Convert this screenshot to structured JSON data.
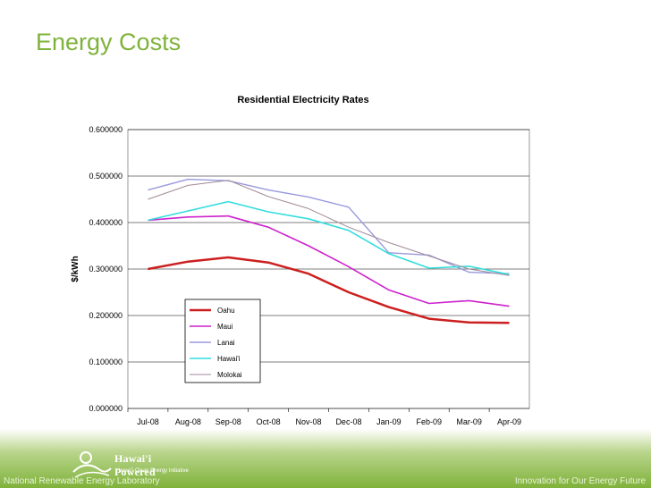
{
  "slide": {
    "title": "Energy Costs",
    "footer_left": "National Renewable Energy Laboratory",
    "footer_right": "Innovation for Our Energy Future",
    "logo_text": "Hawai'i Powered",
    "logo_subtext": "Hawai'i Clean Energy Initiative"
  },
  "colors": {
    "title": "#7fb23a",
    "plot_bg": "#ffffff",
    "grid": "#000000"
  },
  "chart_data": {
    "type": "line",
    "title": "Residential Electricity Rates",
    "ylabel": "$/kWh",
    "xlabel": "",
    "ylim": [
      0,
      0.6
    ],
    "y_ticks": [
      "0.000000",
      "0.100000",
      "0.200000",
      "0.300000",
      "0.400000",
      "0.500000",
      "0.600000"
    ],
    "categories": [
      "Jul-08",
      "Aug-08",
      "Sep-08",
      "Oct-08",
      "Nov-08",
      "Dec-08",
      "Jan-09",
      "Feb-09",
      "Mar-09",
      "Apr-09"
    ],
    "grid": true,
    "legend_position": "inside-bottom-left",
    "series": [
      {
        "name": "Oahu",
        "color": "#cc1f1f",
        "width": 2.5,
        "values": [
          0.3,
          0.316,
          0.325,
          0.314,
          0.29,
          0.25,
          0.218,
          0.193,
          0.185,
          0.184
        ]
      },
      {
        "name": "Maui",
        "color": "#cc22cc",
        "width": 1.6,
        "values": [
          0.405,
          0.412,
          0.414,
          0.39,
          0.35,
          0.305,
          0.255,
          0.226,
          0.232,
          0.22
        ]
      },
      {
        "name": "Lanai",
        "color": "#9999dd",
        "width": 1.4,
        "values": [
          0.47,
          0.493,
          0.49,
          0.47,
          0.455,
          0.433,
          0.335,
          0.33,
          0.293,
          0.29
        ]
      },
      {
        "name": "Hawai'i",
        "color": "#33dddd",
        "width": 1.6,
        "values": [
          0.405,
          0.425,
          0.445,
          0.423,
          0.408,
          0.383,
          0.333,
          0.302,
          0.306,
          0.288
        ]
      },
      {
        "name": "Molokai",
        "color": "#a08a98",
        "width": 1.0,
        "values": [
          0.45,
          0.48,
          0.491,
          0.456,
          0.43,
          0.39,
          0.357,
          0.328,
          0.3,
          0.286
        ]
      }
    ]
  }
}
